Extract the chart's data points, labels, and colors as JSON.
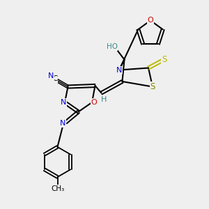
{
  "bg_color": "#efefef",
  "atom_colors": {
    "N": "#0000dd",
    "O": "#cc0000",
    "S_exo": "#bbbb00",
    "S_ring": "#888800",
    "H": "#3a8a8a",
    "C": "#000000",
    "bond": "#000000"
  },
  "layout": {
    "xlim": [
      0,
      10
    ],
    "ylim": [
      0,
      10
    ]
  }
}
